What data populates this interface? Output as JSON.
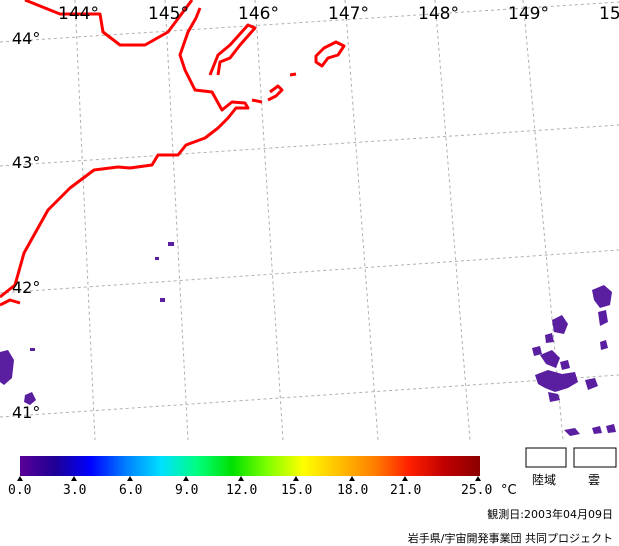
{
  "map": {
    "longitude_labels": [
      "144°",
      "145°",
      "146°",
      "147°",
      "148°",
      "149°",
      "15"
    ],
    "latitude_labels": [
      "44°",
      "43°",
      "42°",
      "41°"
    ],
    "coastline_color": "#ff0000",
    "grid_color": "#b0b0b0",
    "data_color": "#5a1ea0"
  },
  "colorbar": {
    "ticks": [
      "0.0",
      "3.0",
      "6.0",
      "9.0",
      "12.0",
      "15.0",
      "18.0",
      "21.0",
      "25.0"
    ],
    "unit": "°C",
    "gradient": [
      "#5a0096",
      "#1e0096",
      "#0000ff",
      "#0080ff",
      "#00e0ff",
      "#00ff80",
      "#00e000",
      "#80ff00",
      "#ffff00",
      "#ffc000",
      "#ff8000",
      "#ff2000",
      "#c00000",
      "#8c0000"
    ]
  },
  "legend": {
    "land_label": "陸域",
    "cloud_label": "雲"
  },
  "footer": {
    "observation_date": "観測日:2003年04月09日",
    "credit": "岩手県/宇宙開発事業団 共同プロジェクト"
  }
}
